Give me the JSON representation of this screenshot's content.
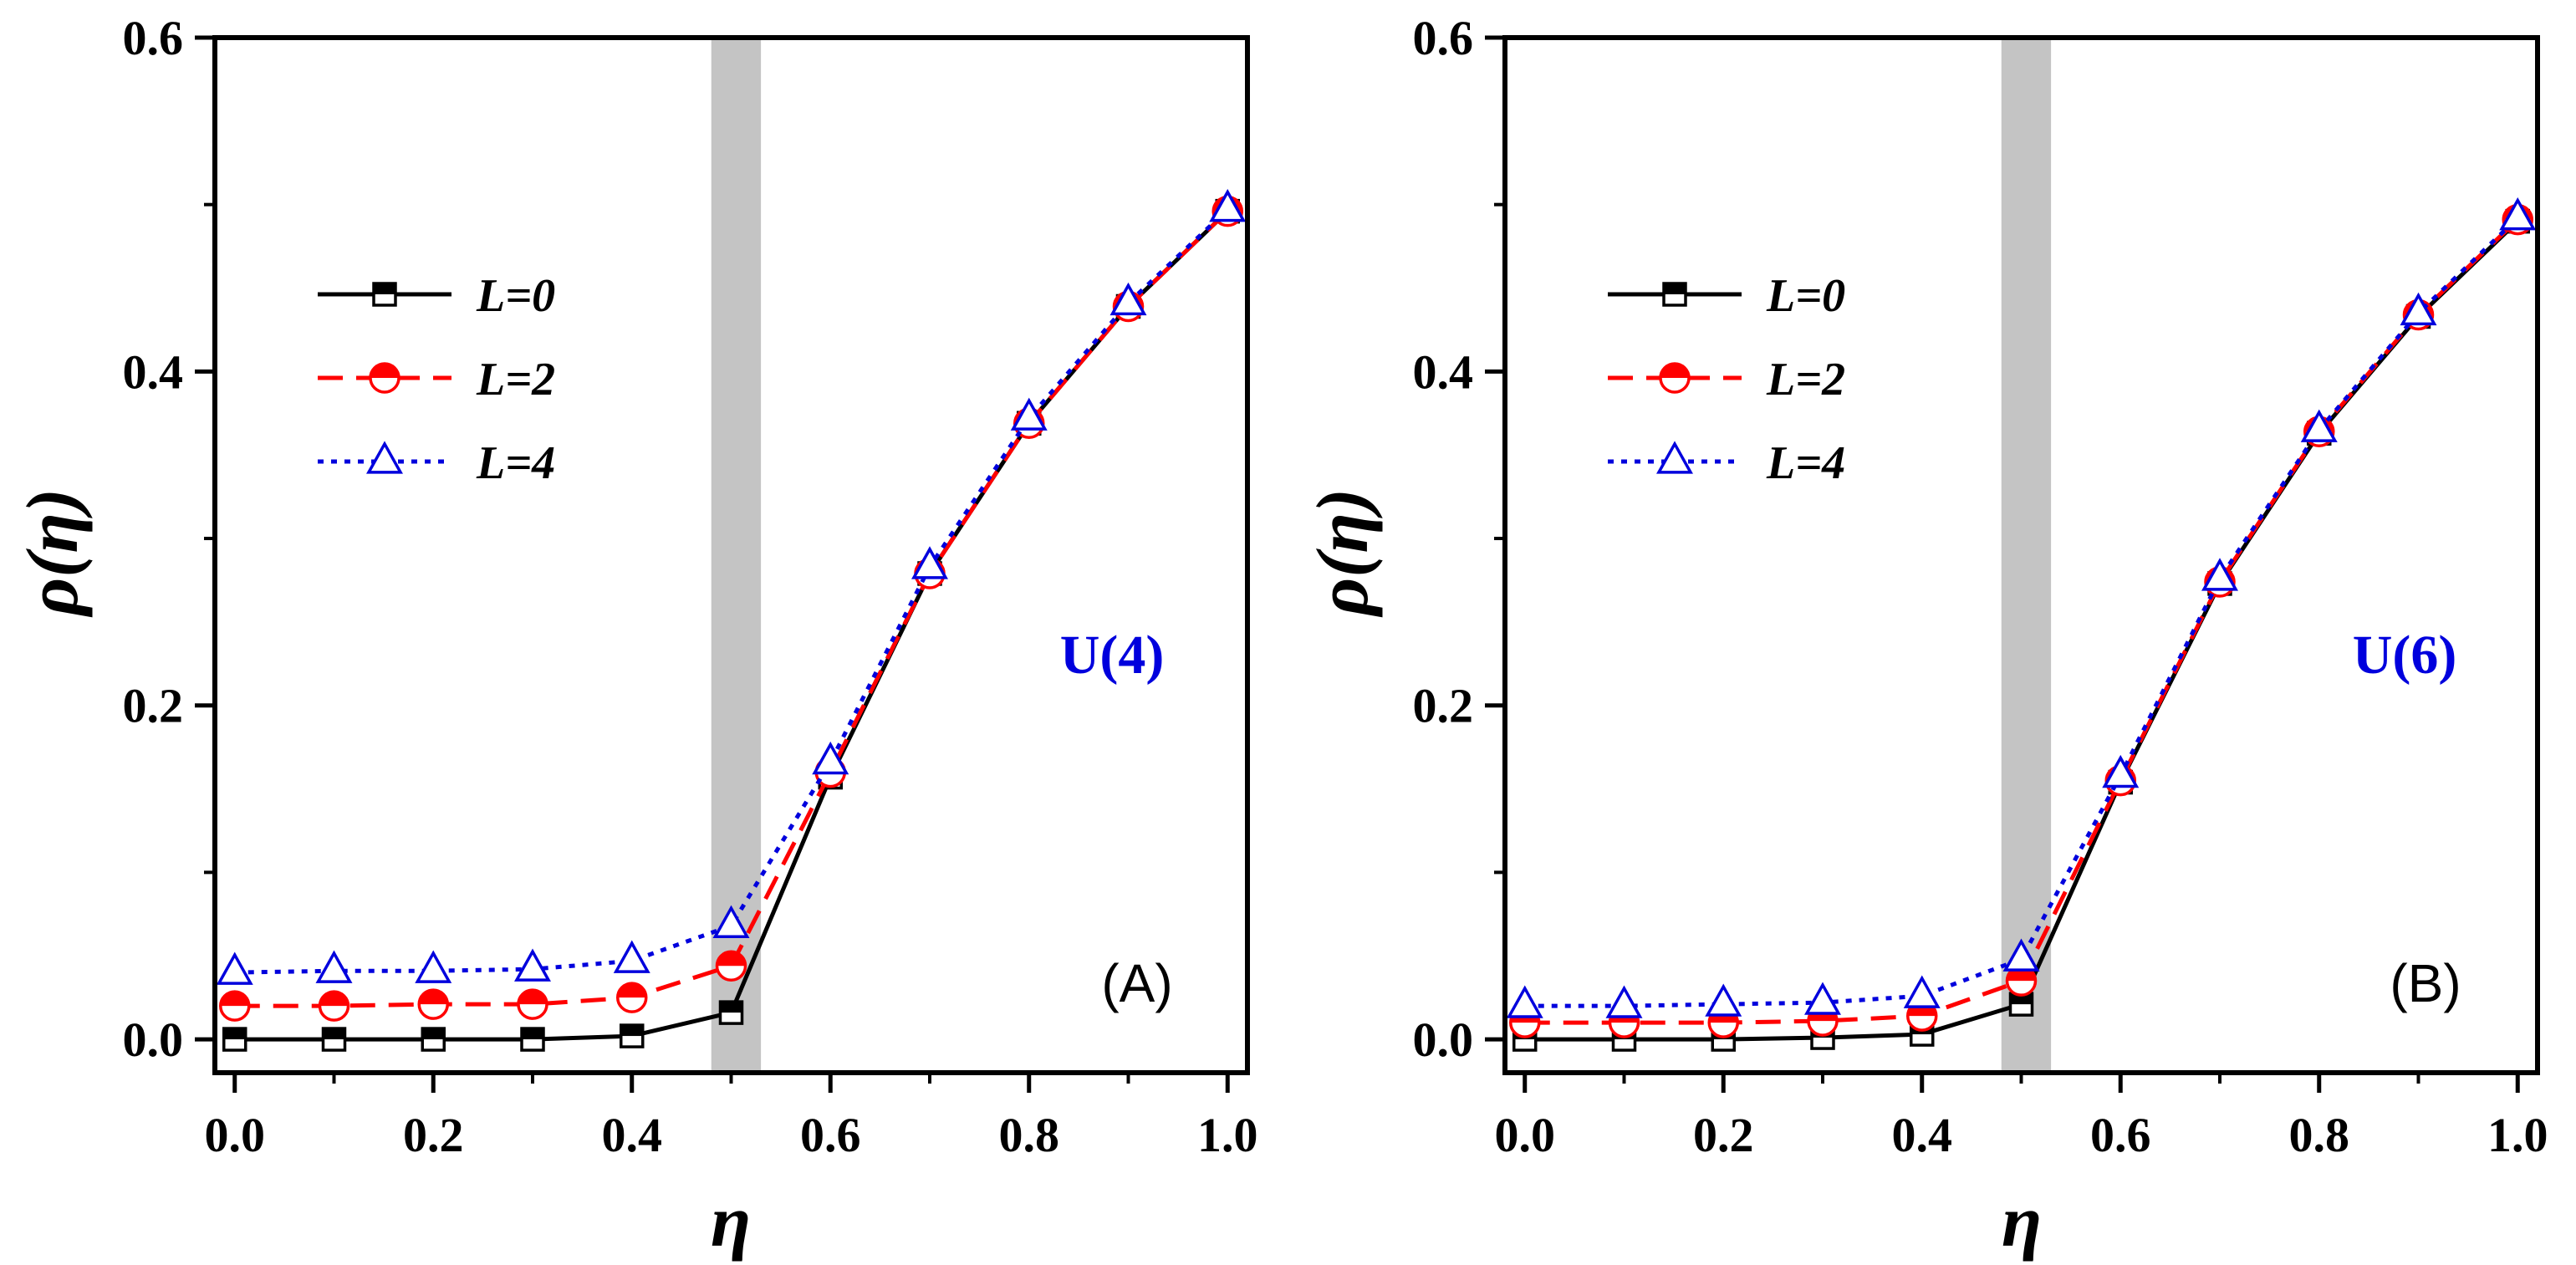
{
  "chart_data": [
    {
      "type": "line",
      "panel_label": "(A)",
      "group_label": "U(4)",
      "xlabel": "η",
      "ylabel": "ρ(η)",
      "xlim": [
        -0.02,
        1.02
      ],
      "ylim": [
        -0.02,
        0.6
      ],
      "xticks": [
        "0.0",
        "0.2",
        "0.4",
        "0.6",
        "0.8",
        "1.0"
      ],
      "yticks": [
        "0.0",
        "0.2",
        "0.4",
        "0.6"
      ],
      "shaded_region": [
        0.48,
        0.53
      ],
      "legend_position": "upper-left",
      "x": [
        0.0,
        0.1,
        0.2,
        0.3,
        0.4,
        0.5,
        0.6,
        0.7,
        0.8,
        0.9,
        1.0
      ],
      "series": [
        {
          "name": "L=0",
          "color": "#000000",
          "dash": "solid",
          "marker": "square",
          "values": [
            0.0,
            0.0,
            0.0,
            0.0,
            0.002,
            0.016,
            0.157,
            0.279,
            0.369,
            0.439,
            0.496
          ]
        },
        {
          "name": "L=2",
          "color": "#ff0000",
          "dash": "dashed",
          "marker": "circle",
          "values": [
            0.02,
            0.02,
            0.021,
            0.021,
            0.025,
            0.044,
            0.16,
            0.279,
            0.369,
            0.439,
            0.496
          ]
        },
        {
          "name": "L=4",
          "color": "#0000dd",
          "dash": "dotted",
          "marker": "triangle",
          "values": [
            0.04,
            0.041,
            0.041,
            0.042,
            0.047,
            0.068,
            0.166,
            0.283,
            0.372,
            0.441,
            0.497
          ]
        }
      ]
    },
    {
      "type": "line",
      "panel_label": "(B)",
      "group_label": "U(6)",
      "xlabel": "η",
      "ylabel": "ρ(η)",
      "xlim": [
        -0.02,
        1.02
      ],
      "ylim": [
        -0.02,
        0.6
      ],
      "xticks": [
        "0.0",
        "0.2",
        "0.4",
        "0.6",
        "0.8",
        "1.0"
      ],
      "yticks": [
        "0.0",
        "0.2",
        "0.4",
        "0.6"
      ],
      "shaded_region": [
        0.48,
        0.53
      ],
      "legend_position": "upper-left",
      "x": [
        0.0,
        0.1,
        0.2,
        0.3,
        0.4,
        0.5,
        0.6,
        0.7,
        0.8,
        0.9,
        1.0
      ],
      "series": [
        {
          "name": "L=0",
          "color": "#000000",
          "dash": "solid",
          "marker": "square",
          "values": [
            0.0,
            0.0,
            0.0,
            0.001,
            0.003,
            0.021,
            0.154,
            0.273,
            0.363,
            0.433,
            0.49
          ]
        },
        {
          "name": "L=2",
          "color": "#ff0000",
          "dash": "dashed",
          "marker": "circle",
          "values": [
            0.01,
            0.01,
            0.01,
            0.011,
            0.014,
            0.035,
            0.155,
            0.274,
            0.364,
            0.434,
            0.491
          ]
        },
        {
          "name": "L=4",
          "color": "#0000dd",
          "dash": "dotted",
          "marker": "triangle",
          "values": [
            0.02,
            0.02,
            0.021,
            0.022,
            0.026,
            0.048,
            0.158,
            0.276,
            0.365,
            0.435,
            0.492
          ]
        }
      ]
    }
  ]
}
